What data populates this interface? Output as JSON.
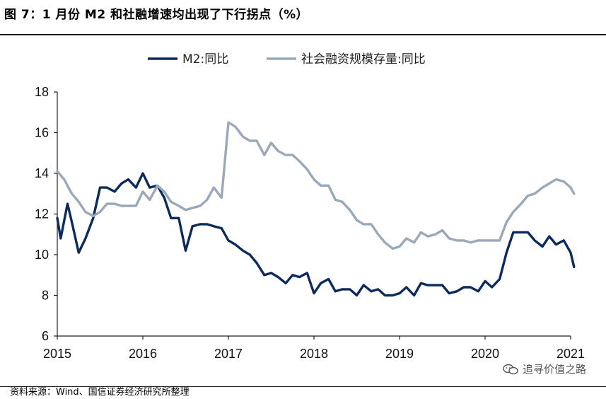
{
  "header": {
    "title": "图 7：1 月份 M2 和社融增速均出现了下行拐点（%）"
  },
  "footer": {
    "source": "资料来源：Wind、国信证券经济研究所整理"
  },
  "watermark": {
    "text": "追寻价值之路",
    "icon": "wechat-icon"
  },
  "chart_data": {
    "type": "line",
    "ylim": [
      6,
      18
    ],
    "yticks": [
      6,
      8,
      10,
      12,
      14,
      16,
      18
    ],
    "xlim": [
      2015,
      2021
    ],
    "xticks": [
      "2015",
      "2016",
      "2017",
      "2018",
      "2019",
      "2020",
      "2021"
    ],
    "grid": false,
    "legend_position": "top",
    "series": [
      {
        "name": "M2:同比",
        "color": "#0d2a5c",
        "points": [
          [
            2015.0,
            11.8
          ],
          [
            2015.04,
            10.8
          ],
          [
            2015.12,
            12.5
          ],
          [
            2015.17,
            11.6
          ],
          [
            2015.25,
            10.1
          ],
          [
            2015.33,
            10.8
          ],
          [
            2015.42,
            11.8
          ],
          [
            2015.5,
            13.3
          ],
          [
            2015.58,
            13.3
          ],
          [
            2015.67,
            13.1
          ],
          [
            2015.75,
            13.5
          ],
          [
            2015.83,
            13.7
          ],
          [
            2015.92,
            13.3
          ],
          [
            2016.0,
            14.0
          ],
          [
            2016.08,
            13.3
          ],
          [
            2016.17,
            13.4
          ],
          [
            2016.25,
            12.8
          ],
          [
            2016.33,
            11.8
          ],
          [
            2016.42,
            11.8
          ],
          [
            2016.5,
            10.2
          ],
          [
            2016.58,
            11.4
          ],
          [
            2016.67,
            11.5
          ],
          [
            2016.75,
            11.5
          ],
          [
            2016.83,
            11.4
          ],
          [
            2016.92,
            11.3
          ],
          [
            2017.0,
            10.7
          ],
          [
            2017.08,
            10.5
          ],
          [
            2017.17,
            10.2
          ],
          [
            2017.25,
            10.0
          ],
          [
            2017.33,
            9.6
          ],
          [
            2017.42,
            9.0
          ],
          [
            2017.5,
            9.1
          ],
          [
            2017.58,
            8.9
          ],
          [
            2017.67,
            8.6
          ],
          [
            2017.75,
            9.0
          ],
          [
            2017.83,
            8.9
          ],
          [
            2017.92,
            9.1
          ],
          [
            2018.0,
            8.1
          ],
          [
            2018.08,
            8.6
          ],
          [
            2018.17,
            8.8
          ],
          [
            2018.25,
            8.2
          ],
          [
            2018.33,
            8.3
          ],
          [
            2018.42,
            8.3
          ],
          [
            2018.5,
            8.0
          ],
          [
            2018.58,
            8.5
          ],
          [
            2018.67,
            8.2
          ],
          [
            2018.75,
            8.3
          ],
          [
            2018.83,
            8.0
          ],
          [
            2018.92,
            8.0
          ],
          [
            2019.0,
            8.1
          ],
          [
            2019.08,
            8.4
          ],
          [
            2019.17,
            8.0
          ],
          [
            2019.25,
            8.6
          ],
          [
            2019.33,
            8.5
          ],
          [
            2019.42,
            8.5
          ],
          [
            2019.5,
            8.5
          ],
          [
            2019.58,
            8.1
          ],
          [
            2019.67,
            8.2
          ],
          [
            2019.75,
            8.4
          ],
          [
            2019.83,
            8.4
          ],
          [
            2019.92,
            8.2
          ],
          [
            2020.0,
            8.7
          ],
          [
            2020.08,
            8.4
          ],
          [
            2020.17,
            8.8
          ],
          [
            2020.25,
            10.1
          ],
          [
            2020.33,
            11.1
          ],
          [
            2020.42,
            11.1
          ],
          [
            2020.5,
            11.1
          ],
          [
            2020.58,
            10.7
          ],
          [
            2020.67,
            10.4
          ],
          [
            2020.75,
            10.9
          ],
          [
            2020.83,
            10.5
          ],
          [
            2020.92,
            10.7
          ],
          [
            2021.0,
            10.1
          ],
          [
            2021.04,
            9.4
          ]
        ]
      },
      {
        "name": "社会融资规模存量:同比",
        "color": "#9aa8b8",
        "points": [
          [
            2015.0,
            14.1
          ],
          [
            2015.08,
            13.7
          ],
          [
            2015.17,
            13.0
          ],
          [
            2015.25,
            12.6
          ],
          [
            2015.33,
            12.1
          ],
          [
            2015.42,
            11.9
          ],
          [
            2015.5,
            12.1
          ],
          [
            2015.58,
            12.5
          ],
          [
            2015.67,
            12.5
          ],
          [
            2015.75,
            12.4
          ],
          [
            2015.83,
            12.4
          ],
          [
            2015.92,
            12.4
          ],
          [
            2016.0,
            13.1
          ],
          [
            2016.08,
            12.7
          ],
          [
            2016.17,
            13.4
          ],
          [
            2016.25,
            13.1
          ],
          [
            2016.33,
            12.6
          ],
          [
            2016.42,
            12.4
          ],
          [
            2016.5,
            12.2
          ],
          [
            2016.58,
            12.3
          ],
          [
            2016.67,
            12.4
          ],
          [
            2016.75,
            12.7
          ],
          [
            2016.83,
            13.3
          ],
          [
            2016.92,
            12.8
          ],
          [
            2017.0,
            16.5
          ],
          [
            2017.08,
            16.3
          ],
          [
            2017.17,
            15.8
          ],
          [
            2017.25,
            15.6
          ],
          [
            2017.33,
            15.6
          ],
          [
            2017.42,
            14.9
          ],
          [
            2017.5,
            15.5
          ],
          [
            2017.58,
            15.1
          ],
          [
            2017.67,
            14.9
          ],
          [
            2017.75,
            14.9
          ],
          [
            2017.83,
            14.6
          ],
          [
            2017.92,
            14.2
          ],
          [
            2018.0,
            13.7
          ],
          [
            2018.08,
            13.4
          ],
          [
            2018.17,
            13.4
          ],
          [
            2018.25,
            12.7
          ],
          [
            2018.33,
            12.6
          ],
          [
            2018.42,
            12.2
          ],
          [
            2018.5,
            11.7
          ],
          [
            2018.58,
            11.5
          ],
          [
            2018.67,
            11.5
          ],
          [
            2018.75,
            11.0
          ],
          [
            2018.83,
            10.6
          ],
          [
            2018.92,
            10.3
          ],
          [
            2019.0,
            10.4
          ],
          [
            2019.08,
            10.8
          ],
          [
            2019.17,
            10.6
          ],
          [
            2019.25,
            11.1
          ],
          [
            2019.33,
            10.9
          ],
          [
            2019.42,
            11.0
          ],
          [
            2019.5,
            11.2
          ],
          [
            2019.58,
            10.8
          ],
          [
            2019.67,
            10.7
          ],
          [
            2019.75,
            10.7
          ],
          [
            2019.83,
            10.6
          ],
          [
            2019.92,
            10.7
          ],
          [
            2020.0,
            10.7
          ],
          [
            2020.08,
            10.7
          ],
          [
            2020.17,
            10.7
          ],
          [
            2020.25,
            11.6
          ],
          [
            2020.33,
            12.1
          ],
          [
            2020.42,
            12.5
          ],
          [
            2020.5,
            12.9
          ],
          [
            2020.58,
            13.0
          ],
          [
            2020.67,
            13.3
          ],
          [
            2020.75,
            13.5
          ],
          [
            2020.83,
            13.7
          ],
          [
            2020.92,
            13.6
          ],
          [
            2021.0,
            13.3
          ],
          [
            2021.04,
            13.0
          ]
        ]
      }
    ]
  }
}
